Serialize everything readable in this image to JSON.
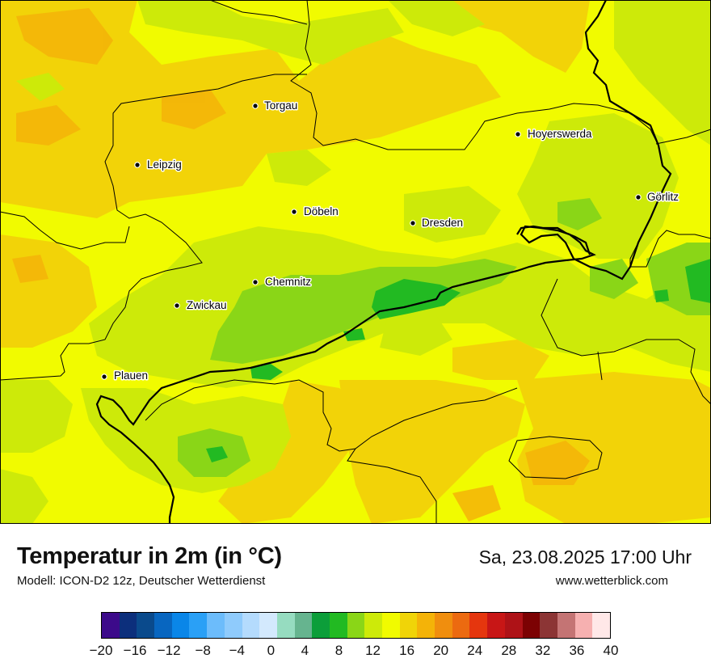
{
  "map": {
    "cities": [
      {
        "name": "Torgau"
      },
      {
        "name": "Hoyerswerda"
      },
      {
        "name": "Leipzig"
      },
      {
        "name": "Görlitz"
      },
      {
        "name": "Döbeln"
      },
      {
        "name": "Dresden"
      },
      {
        "name": "Chemnitz"
      },
      {
        "name": "Zwickau"
      },
      {
        "name": "Plauen"
      }
    ]
  },
  "header": {
    "title": "Temperatur in 2m (in °C)",
    "subtitle": "Modell: ICON-D2 12z, Deutscher Wetterdienst",
    "datetime": "Sa, 23.08.2025 17:00 Uhr",
    "website": "www.wetterblick.com"
  },
  "legend": {
    "min": -20,
    "max": 40,
    "ticks": [
      "−20",
      "−16",
      "−12",
      "−8",
      "−4",
      "0",
      "4",
      "8",
      "12",
      "16",
      "20",
      "24",
      "28",
      "32",
      "36",
      "40"
    ],
    "colors": [
      "#3c0a8a",
      "#0c2f7c",
      "#0a4a8c",
      "#0866c0",
      "#0a86e8",
      "#2aa0f6",
      "#6cbcfb",
      "#8fcbfc",
      "#b4dbfd",
      "#d3e9fd",
      "#96dcc0",
      "#66b48f",
      "#0c9e3a",
      "#22ba22",
      "#8ad617",
      "#cdea09",
      "#f1fb00",
      "#f0d408",
      "#f4b308",
      "#f08e0e",
      "#ec6a10",
      "#e5360e",
      "#c81616",
      "#ae1217",
      "#7c0203",
      "#8c3535",
      "#c47474",
      "#f6b0b0",
      "#ffe8e8"
    ]
  }
}
